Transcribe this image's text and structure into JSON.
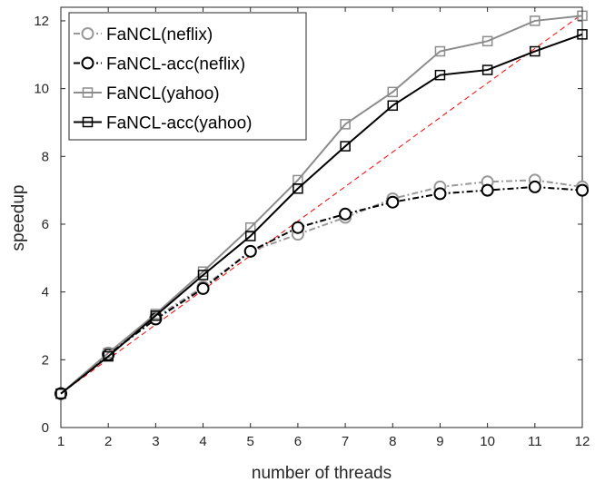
{
  "chart_data": {
    "type": "line",
    "xlabel": "number of threads",
    "ylabel": "speedup",
    "xlim": [
      1,
      12
    ],
    "ylim": [
      0,
      12.4
    ],
    "xticks": [
      1,
      2,
      3,
      4,
      5,
      6,
      7,
      8,
      9,
      10,
      11,
      12
    ],
    "yticks": [
      0,
      2,
      4,
      6,
      8,
      10,
      12
    ],
    "grid": false,
    "legend_position": "top-left",
    "reference_line": {
      "style": "red dashed",
      "color": "#ff0000",
      "x": [
        1,
        12
      ],
      "y": [
        1,
        12.2
      ]
    },
    "series": [
      {
        "name": "FaNCL(neflix)",
        "color": "#999999",
        "marker": "circle",
        "line_style": "dash-dot",
        "x": [
          1,
          2,
          3,
          4,
          5,
          6,
          7,
          8,
          9,
          10,
          11,
          12
        ],
        "values": [
          1.0,
          2.2,
          3.25,
          4.15,
          5.2,
          5.7,
          6.2,
          6.75,
          7.1,
          7.25,
          7.3,
          7.1
        ]
      },
      {
        "name": "FaNCL-acc(neflix)",
        "color": "#000000",
        "marker": "circle",
        "line_style": "dash-dot",
        "x": [
          1,
          2,
          3,
          4,
          5,
          6,
          7,
          8,
          9,
          10,
          11,
          12
        ],
        "values": [
          1.0,
          2.15,
          3.2,
          4.1,
          5.2,
          5.9,
          6.3,
          6.65,
          6.9,
          7.0,
          7.1,
          7.0
        ]
      },
      {
        "name": "FaNCL(yahoo)",
        "color": "#8c8c8c",
        "marker": "square",
        "line_style": "solid",
        "x": [
          1,
          2,
          3,
          4,
          5,
          6,
          7,
          8,
          9,
          10,
          11,
          12
        ],
        "values": [
          1.0,
          2.2,
          3.35,
          4.6,
          5.9,
          7.3,
          8.95,
          9.9,
          11.1,
          11.4,
          12.0,
          12.15
        ]
      },
      {
        "name": "FaNCL-acc(yahoo)",
        "color": "#000000",
        "marker": "square",
        "line_style": "solid",
        "x": [
          1,
          2,
          3,
          4,
          5,
          6,
          7,
          8,
          9,
          10,
          11,
          12
        ],
        "values": [
          1.0,
          2.1,
          3.3,
          4.5,
          5.65,
          7.05,
          8.3,
          9.5,
          10.4,
          10.55,
          11.1,
          11.6
        ]
      }
    ]
  }
}
